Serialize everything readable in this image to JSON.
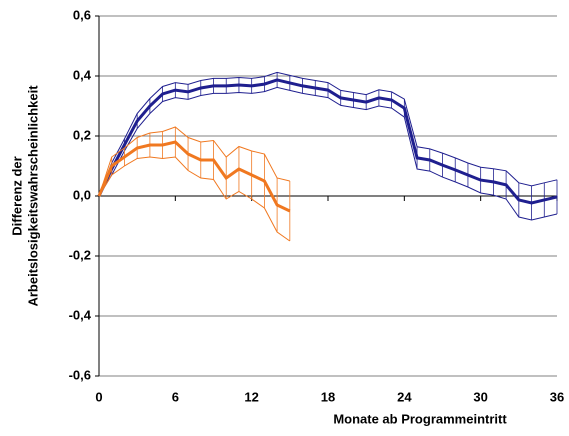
{
  "chart_data": {
    "type": "line",
    "x_label": "Monate ab Programmeintritt",
    "y_label": [
      "Differenz der",
      "Arbeitslosigkeitswahrscheinlichkeit"
    ],
    "xlim": [
      0,
      36
    ],
    "xticks": [
      0,
      6,
      12,
      18,
      24,
      30,
      36
    ],
    "ylim": [
      -0.6,
      0.6
    ],
    "yticks": [
      {
        "value": 0.6,
        "label": "0,6"
      },
      {
        "value": 0.4,
        "label": "0,4"
      },
      {
        "value": 0.2,
        "label": "0,2"
      },
      {
        "value": 0,
        "label": "0,0"
      },
      {
        "value": -0.2,
        "label": "-0,2"
      },
      {
        "value": -0.4,
        "label": "-0,4"
      },
      {
        "value": -0.6,
        "label": "-0,6"
      }
    ],
    "grid": true,
    "series": [
      {
        "color": "#1f1f8f",
        "x": [
          0,
          1,
          2,
          3,
          4,
          5,
          6,
          7,
          8,
          9,
          10,
          11,
          12,
          13,
          14,
          15,
          16,
          17,
          18,
          19,
          20,
          21,
          22,
          23,
          24,
          25,
          26,
          27,
          28,
          29,
          30,
          31,
          32,
          33,
          34,
          35,
          36
        ],
        "values": [
          0.0,
          0.09,
          0.17,
          0.25,
          0.3,
          0.34,
          0.353,
          0.347,
          0.36,
          0.367,
          0.367,
          0.37,
          0.367,
          0.373,
          0.387,
          0.377,
          0.367,
          0.36,
          0.353,
          0.327,
          0.32,
          0.313,
          0.327,
          0.32,
          0.293,
          0.127,
          0.12,
          0.103,
          0.087,
          0.07,
          0.053,
          0.047,
          0.037,
          -0.013,
          -0.023,
          -0.013,
          -0.003
        ],
        "lower": [
          0.0,
          0.07,
          0.15,
          0.225,
          0.275,
          0.315,
          0.328,
          0.322,
          0.335,
          0.342,
          0.342,
          0.345,
          0.342,
          0.348,
          0.362,
          0.352,
          0.342,
          0.335,
          0.328,
          0.302,
          0.295,
          0.288,
          0.3,
          0.293,
          0.263,
          0.09,
          0.083,
          0.063,
          0.047,
          0.03,
          0.01,
          0.003,
          -0.01,
          -0.07,
          -0.08,
          -0.07,
          -0.06
        ],
        "upper": [
          0.0,
          0.11,
          0.19,
          0.275,
          0.325,
          0.365,
          0.378,
          0.372,
          0.385,
          0.392,
          0.392,
          0.395,
          0.392,
          0.398,
          0.412,
          0.402,
          0.392,
          0.385,
          0.378,
          0.352,
          0.345,
          0.338,
          0.354,
          0.347,
          0.323,
          0.164,
          0.157,
          0.143,
          0.127,
          0.11,
          0.096,
          0.091,
          0.084,
          0.044,
          0.034,
          0.044,
          0.054
        ]
      },
      {
        "color": "#f07820",
        "x": [
          0,
          1,
          2,
          3,
          4,
          5,
          6,
          7,
          8,
          9,
          10,
          11,
          12,
          13,
          14,
          15
        ],
        "values": [
          0.0,
          0.1,
          0.13,
          0.16,
          0.17,
          0.17,
          0.18,
          0.14,
          0.12,
          0.12,
          0.06,
          0.09,
          0.07,
          0.05,
          -0.03,
          -0.05
        ],
        "lower": [
          0.0,
          0.07,
          0.1,
          0.125,
          0.13,
          0.125,
          0.13,
          0.085,
          0.06,
          0.055,
          -0.01,
          0.015,
          -0.01,
          -0.04,
          -0.12,
          -0.15
        ],
        "upper": [
          0.0,
          0.13,
          0.16,
          0.195,
          0.21,
          0.215,
          0.23,
          0.195,
          0.18,
          0.185,
          0.13,
          0.165,
          0.15,
          0.14,
          0.06,
          0.05
        ]
      }
    ]
  }
}
